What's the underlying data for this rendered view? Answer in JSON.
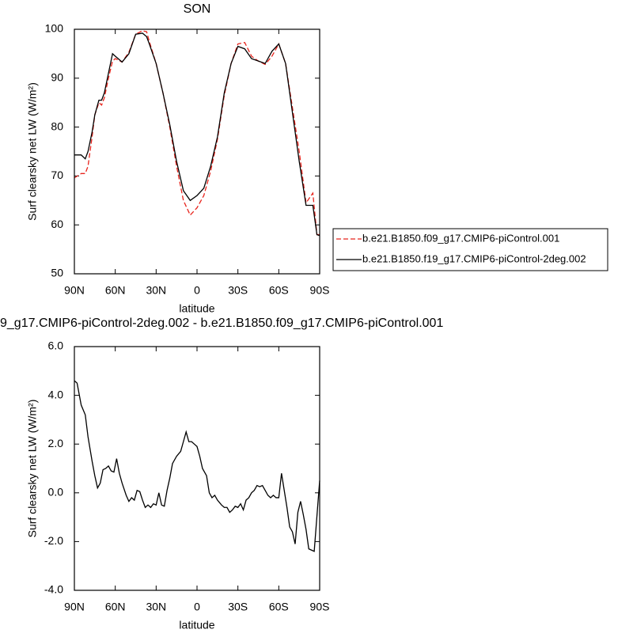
{
  "chart_data": [
    {
      "type": "line",
      "title": "SON",
      "xlabel": "latitude",
      "ylabel": "Surf clearsky net LW (W/m²)",
      "xlim": [
        90,
        -90
      ],
      "xticks": [
        {
          "value": 90,
          "label": "90N"
        },
        {
          "value": 60,
          "label": "60N"
        },
        {
          "value": 30,
          "label": "30N"
        },
        0,
        {
          "value": -30,
          "label": "30S"
        },
        {
          "value": -60,
          "label": "60S"
        },
        {
          "value": -90,
          "label": "90S"
        }
      ],
      "ylim": [
        50,
        100
      ],
      "yticks": [
        50,
        60,
        70,
        80,
        90,
        100
      ],
      "legend": "right",
      "x": [
        90,
        85,
        82,
        80,
        77,
        75,
        72,
        70,
        68,
        65,
        62,
        60,
        55,
        50,
        45,
        40,
        37,
        35,
        30,
        25,
        20,
        15,
        10,
        5,
        0,
        -5,
        -10,
        -15,
        -20,
        -25,
        -30,
        -35,
        -40,
        -45,
        -50,
        -55,
        -60,
        -65,
        -70,
        -75,
        -80,
        -85,
        -88,
        -90
      ],
      "series": [
        {
          "name": "b.e21.B1850.f09_g17.CMIP6-piControl.001",
          "color": "#e8241c",
          "dash": "dashed",
          "values": [
            69.6,
            70.5,
            70.5,
            72,
            78,
            82.5,
            85,
            84.5,
            86,
            90,
            93.5,
            94,
            93.3,
            95.3,
            99,
            99.7,
            99.5,
            97.5,
            93,
            87,
            80,
            72,
            65,
            62,
            63.5,
            66,
            71,
            77.5,
            86.5,
            93,
            97,
            97.3,
            94.5,
            93.5,
            92.8,
            94.5,
            97,
            93,
            84,
            75,
            64.5,
            66.5,
            58,
            58
          ]
        },
        {
          "name": "b.e21.B1850.f19_g17.CMIP6-piControl-2deg.002",
          "color": "#000000",
          "dash": "solid",
          "values": [
            74.3,
            74.3,
            73.5,
            75,
            79,
            82.5,
            85.5,
            85.5,
            87,
            91,
            95,
            94.5,
            93.3,
            95,
            99,
            99.2,
            98.5,
            97,
            93,
            87,
            80.5,
            73,
            67,
            65,
            66,
            67.5,
            72,
            78,
            87,
            93,
            96.5,
            96,
            94,
            93.5,
            93,
            95.5,
            97,
            93,
            83,
            73,
            64,
            64,
            58,
            57.8
          ]
        }
      ]
    },
    {
      "type": "line",
      "title": "9_g17.CMIP6-piControl-2deg.002 - b.e21.B1850.f09_g17.CMIP6-piControl.001",
      "xlabel": "latitude",
      "ylabel": "Surf clearsky net LW (W/m²)",
      "xlim": [
        90,
        -90
      ],
      "xticks": [
        {
          "value": 90,
          "label": "90N"
        },
        {
          "value": 60,
          "label": "60N"
        },
        {
          "value": 30,
          "label": "30N"
        },
        0,
        {
          "value": -30,
          "label": "30S"
        },
        {
          "value": -60,
          "label": "60S"
        },
        {
          "value": -90,
          "label": "90S"
        }
      ],
      "ylim": [
        -4,
        6
      ],
      "yticks": [
        {
          "value": -4,
          "label": "-4.0"
        },
        {
          "value": -2,
          "label": "-2.0"
        },
        {
          "value": 0,
          "label": "0.0"
        },
        {
          "value": 2,
          "label": "2.0"
        },
        {
          "value": 4,
          "label": "4.0"
        },
        {
          "value": 6,
          "label": "6.0"
        }
      ],
      "x": [
        90,
        88,
        85,
        82,
        80,
        77,
        75,
        73,
        71,
        69,
        67,
        65,
        63,
        61,
        59,
        57,
        55,
        52,
        50,
        48,
        46,
        44,
        42,
        40,
        38,
        36,
        34,
        32,
        30,
        28,
        26,
        24,
        22,
        20,
        18,
        15,
        12,
        10,
        8,
        6,
        4,
        2,
        0,
        -2,
        -4,
        -7,
        -9,
        -11,
        -13,
        -15,
        -18,
        -20,
        -22,
        -24,
        -26,
        -28,
        -30,
        -32,
        -34,
        -36,
        -38,
        -40,
        -42,
        -44,
        -46,
        -48,
        -50,
        -52,
        -54,
        -56,
        -58,
        -60,
        -62,
        -64,
        -66,
        -68,
        -70,
        -72,
        -74,
        -76,
        -78,
        -80,
        -82,
        -86,
        -90
      ],
      "series": [
        {
          "color": "#000000",
          "dash": "solid",
          "values": [
            4.6,
            4.5,
            3.6,
            3.2,
            2.3,
            1.3,
            0.7,
            0.2,
            0.4,
            0.95,
            1.0,
            1.1,
            0.9,
            0.85,
            1.4,
            0.8,
            0.4,
            -0.1,
            -0.35,
            -0.2,
            -0.3,
            0.1,
            0.05,
            -0.3,
            -0.6,
            -0.5,
            -0.6,
            -0.45,
            -0.5,
            0,
            -0.5,
            -0.55,
            0.1,
            0.6,
            1.2,
            1.5,
            1.7,
            2.1,
            2.5,
            2.1,
            2.1,
            2.0,
            1.9,
            1.5,
            1.0,
            0.7,
            0,
            -0.2,
            -0.1,
            -0.3,
            -0.5,
            -0.6,
            -0.6,
            -0.8,
            -0.7,
            -0.55,
            -0.6,
            -0.45,
            -0.7,
            -0.3,
            -0.2,
            0,
            0.1,
            0.3,
            0.25,
            0.3,
            0.1,
            -0.1,
            -0.2,
            -0.1,
            -0.2,
            -0.2,
            0.8,
            0.1,
            -0.6,
            -1.4,
            -1.6,
            -2.1,
            -0.8,
            -0.35,
            -0.9,
            -1.5,
            -2.3,
            -2.4,
            0.5
          ]
        }
      ]
    }
  ]
}
